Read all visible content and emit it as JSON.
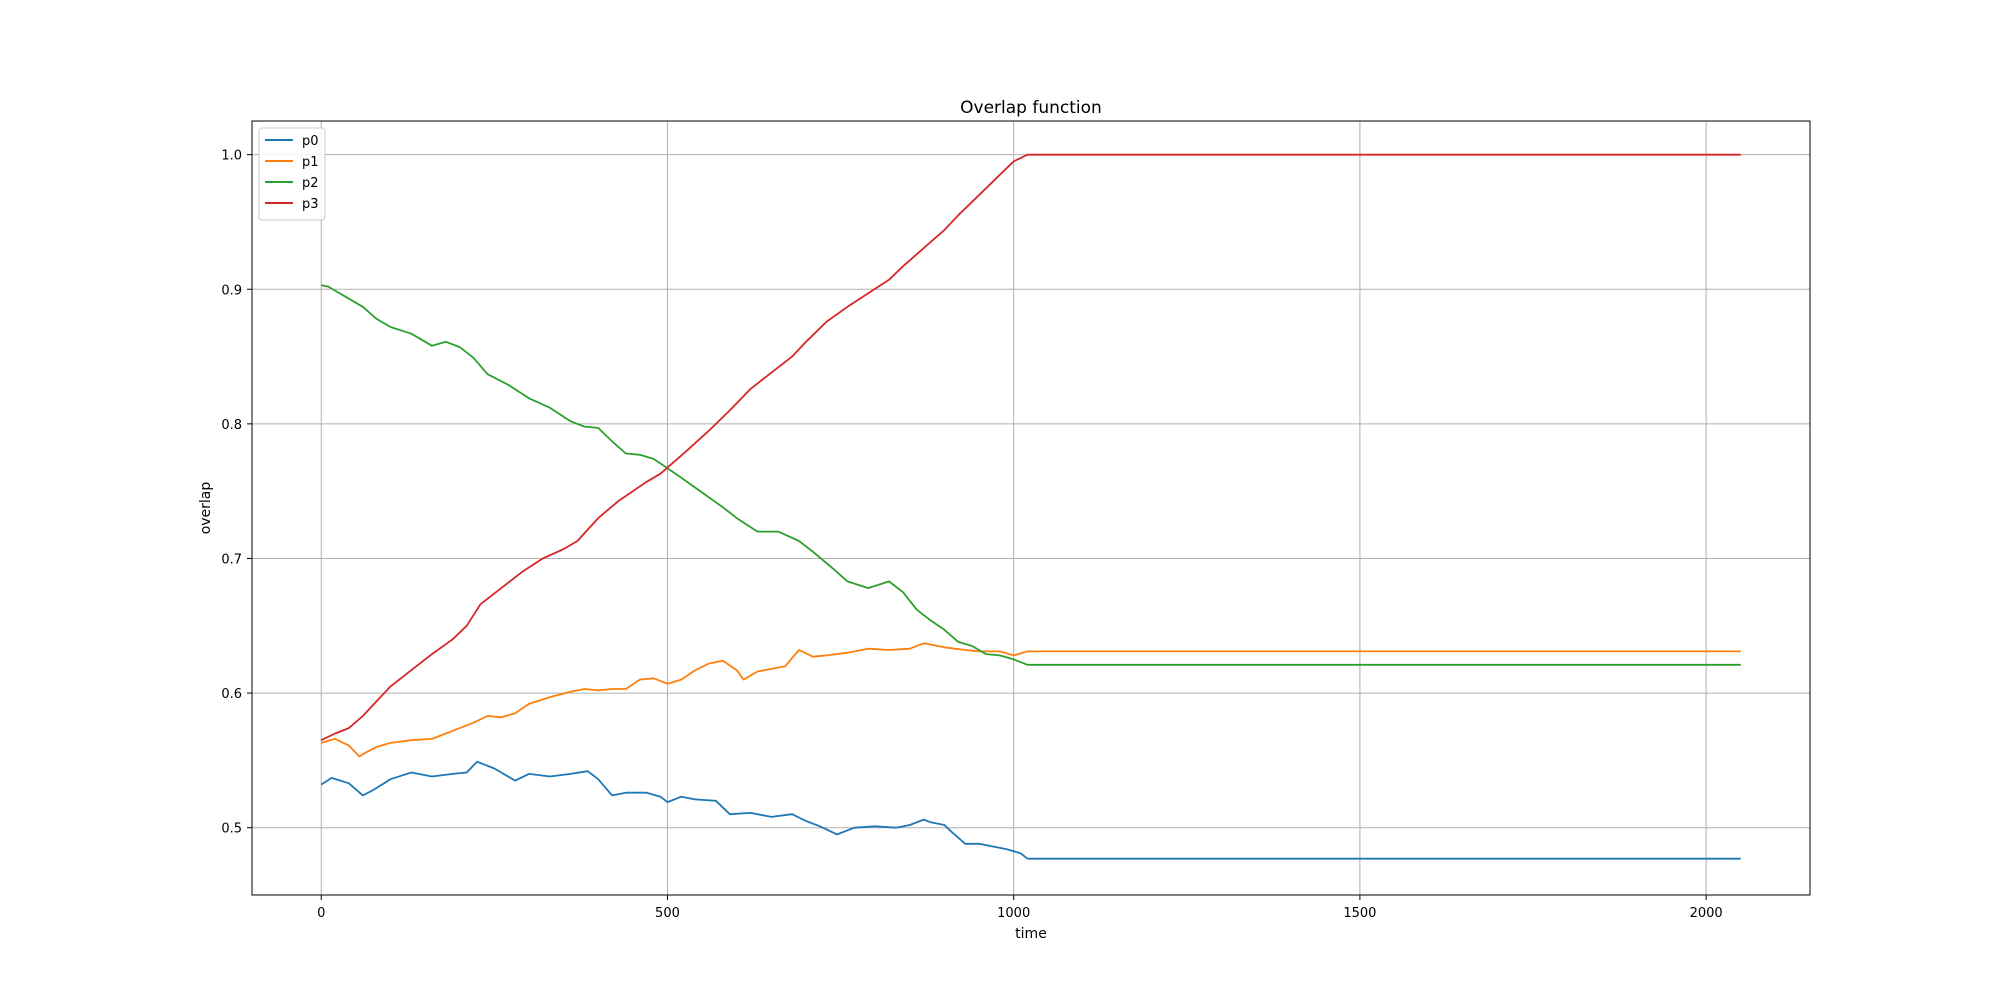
{
  "chart_data": {
    "type": "line",
    "title": "Overlap function",
    "xlabel": "time",
    "ylabel": "overlap",
    "xlim": [
      -100,
      2150
    ],
    "ylim": [
      0.45,
      1.025
    ],
    "xticks": [
      0,
      500,
      1000,
      1500,
      2000
    ],
    "yticks": [
      0.5,
      0.6,
      0.7,
      0.8,
      0.9,
      1.0
    ],
    "xtick_labels": [
      "0",
      "500",
      "1000",
      "1500",
      "2000"
    ],
    "ytick_labels": [
      "0.5",
      "0.6",
      "0.7",
      "0.8",
      "0.9",
      "1.0"
    ],
    "grid": true,
    "legend_position": "top-left",
    "series": [
      {
        "name": "p0",
        "color": "#1f77b4",
        "x": [
          0,
          15,
          40,
          60,
          75,
          100,
          130,
          160,
          190,
          210,
          225,
          250,
          280,
          300,
          330,
          360,
          385,
          400,
          420,
          440,
          470,
          490,
          500,
          520,
          540,
          570,
          590,
          620,
          650,
          680,
          700,
          720,
          745,
          770,
          800,
          830,
          850,
          870,
          880,
          900,
          910,
          930,
          950,
          970,
          990,
          1010,
          1020,
          2050
        ],
        "y": [
          0.532,
          0.537,
          0.533,
          0.524,
          0.528,
          0.536,
          0.541,
          0.538,
          0.54,
          0.541,
          0.549,
          0.544,
          0.535,
          0.54,
          0.538,
          0.54,
          0.542,
          0.536,
          0.524,
          0.526,
          0.526,
          0.523,
          0.519,
          0.523,
          0.521,
          0.52,
          0.51,
          0.511,
          0.508,
          0.51,
          0.505,
          0.501,
          0.495,
          0.5,
          0.501,
          0.5,
          0.502,
          0.506,
          0.504,
          0.502,
          0.497,
          0.488,
          0.488,
          0.486,
          0.484,
          0.481,
          0.477,
          0.477
        ]
      },
      {
        "name": "p1",
        "color": "#ff7f0e",
        "x": [
          0,
          20,
          40,
          55,
          65,
          80,
          100,
          130,
          160,
          190,
          220,
          240,
          260,
          280,
          300,
          330,
          360,
          380,
          400,
          420,
          440,
          460,
          480,
          500,
          520,
          540,
          560,
          580,
          600,
          610,
          630,
          650,
          670,
          690,
          710,
          730,
          760,
          790,
          820,
          850,
          870,
          900,
          930,
          950,
          980,
          1000,
          1020,
          2050
        ],
        "y": [
          0.563,
          0.566,
          0.561,
          0.553,
          0.556,
          0.56,
          0.563,
          0.565,
          0.566,
          0.572,
          0.578,
          0.583,
          0.582,
          0.585,
          0.592,
          0.597,
          0.601,
          0.603,
          0.602,
          0.603,
          0.603,
          0.61,
          0.611,
          0.607,
          0.61,
          0.617,
          0.622,
          0.624,
          0.617,
          0.61,
          0.616,
          0.618,
          0.62,
          0.632,
          0.627,
          0.628,
          0.63,
          0.633,
          0.632,
          0.633,
          0.637,
          0.634,
          0.632,
          0.631,
          0.631,
          0.628,
          0.631,
          0.631
        ]
      },
      {
        "name": "p2",
        "color": "#2ca02c",
        "x": [
          0,
          10,
          20,
          40,
          60,
          80,
          100,
          130,
          160,
          180,
          200,
          220,
          240,
          270,
          300,
          330,
          360,
          380,
          400,
          420,
          440,
          460,
          480,
          500,
          520,
          550,
          580,
          600,
          630,
          660,
          690,
          710,
          740,
          760,
          790,
          820,
          840,
          860,
          880,
          900,
          920,
          940,
          960,
          980,
          1000,
          1020,
          2050
        ],
        "y": [
          0.903,
          0.902,
          0.899,
          0.893,
          0.887,
          0.878,
          0.872,
          0.867,
          0.858,
          0.861,
          0.857,
          0.849,
          0.837,
          0.829,
          0.819,
          0.812,
          0.802,
          0.798,
          0.797,
          0.787,
          0.778,
          0.777,
          0.774,
          0.767,
          0.76,
          0.749,
          0.738,
          0.73,
          0.72,
          0.72,
          0.713,
          0.705,
          0.692,
          0.683,
          0.678,
          0.683,
          0.675,
          0.662,
          0.654,
          0.647,
          0.638,
          0.635,
          0.629,
          0.628,
          0.625,
          0.621,
          0.621
        ]
      },
      {
        "name": "p3",
        "color": "#d62728",
        "x": [
          0,
          20,
          40,
          60,
          80,
          100,
          130,
          160,
          190,
          210,
          230,
          260,
          290,
          320,
          350,
          370,
          400,
          430,
          450,
          470,
          490,
          510,
          530,
          560,
          590,
          620,
          650,
          680,
          700,
          730,
          760,
          790,
          820,
          840,
          860,
          880,
          900,
          920,
          940,
          960,
          980,
          1000,
          1020,
          2050
        ],
        "y": [
          0.565,
          0.57,
          0.574,
          0.583,
          0.594,
          0.605,
          0.617,
          0.629,
          0.64,
          0.65,
          0.666,
          0.678,
          0.69,
          0.7,
          0.707,
          0.713,
          0.73,
          0.743,
          0.75,
          0.757,
          0.763,
          0.772,
          0.781,
          0.795,
          0.81,
          0.826,
          0.838,
          0.85,
          0.861,
          0.876,
          0.887,
          0.897,
          0.907,
          0.917,
          0.926,
          0.935,
          0.944,
          0.955,
          0.965,
          0.975,
          0.985,
          0.995,
          1.0,
          1.0
        ]
      }
    ]
  }
}
